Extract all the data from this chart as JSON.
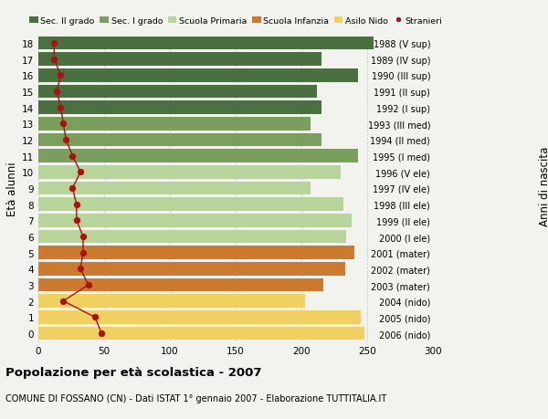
{
  "ages": [
    18,
    17,
    16,
    15,
    14,
    13,
    12,
    11,
    10,
    9,
    8,
    7,
    6,
    5,
    4,
    3,
    2,
    1,
    0
  ],
  "bar_values": [
    255,
    215,
    243,
    212,
    215,
    207,
    215,
    243,
    230,
    207,
    232,
    238,
    234,
    240,
    233,
    217,
    203,
    245,
    248
  ],
  "stranieri": [
    12,
    12,
    17,
    14,
    17,
    19,
    21,
    26,
    32,
    26,
    29,
    29,
    34,
    34,
    32,
    38,
    19,
    43,
    48
  ],
  "right_labels": [
    "1988 (V sup)",
    "1989 (IV sup)",
    "1990 (III sup)",
    "1991 (II sup)",
    "1992 (I sup)",
    "1993 (III med)",
    "1994 (II med)",
    "1995 (I med)",
    "1996 (V ele)",
    "1997 (IV ele)",
    "1998 (III ele)",
    "1999 (II ele)",
    "2000 (I ele)",
    "2001 (mater)",
    "2002 (mater)",
    "2003 (mater)",
    "2004 (nido)",
    "2005 (nido)",
    "2006 (nido)"
  ],
  "bar_colors": [
    "#4a7041",
    "#4a7041",
    "#4a7041",
    "#4a7041",
    "#4a7041",
    "#7a9e5e",
    "#7a9e5e",
    "#7a9e5e",
    "#b8d49a",
    "#b8d49a",
    "#b8d49a",
    "#b8d49a",
    "#b8d49a",
    "#cc7a30",
    "#cc7a30",
    "#cc7a30",
    "#f0d060",
    "#f0d060",
    "#f0d060"
  ],
  "legend_labels": [
    "Sec. II grado",
    "Sec. I grado",
    "Scuola Primaria",
    "Scuola Infanzia",
    "Asilo Nido",
    "Stranieri"
  ],
  "legend_colors": [
    "#4a7041",
    "#7a9e5e",
    "#b8d49a",
    "#cc7a30",
    "#f0d060",
    "#aa1111"
  ],
  "ylabel_left": "Età alunni",
  "ylabel_right": "Anni di nascita",
  "title": "Popolazione per età scolastica - 2007",
  "subtitle": "COMUNE DI FOSSANO (CN) - Dati ISTAT 1° gennaio 2007 - Elaborazione TUTTITALIA.IT",
  "xlim": [
    0,
    300
  ],
  "xticks": [
    0,
    50,
    100,
    150,
    200,
    250,
    300
  ],
  "stranieri_color": "#aa1111",
  "bg_color": "#f2f2ee",
  "grid_color": "#cccccc"
}
